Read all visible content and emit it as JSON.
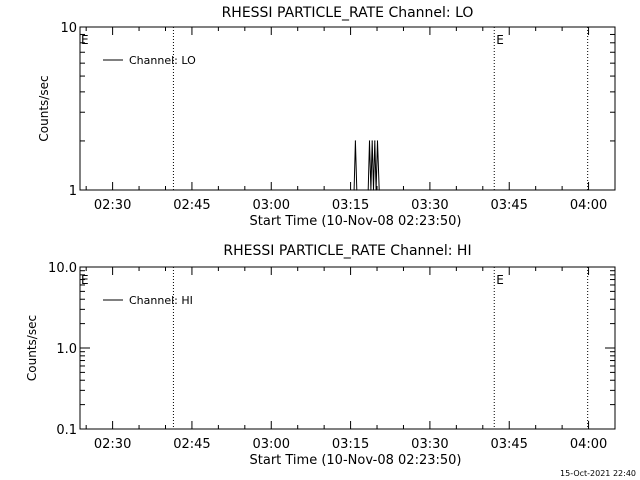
{
  "footer_timestamp": "15-Oct-2021 22:40",
  "chart_data": [
    {
      "type": "line",
      "title": "RHESSI PARTICLE_RATE Channel: LO",
      "xlabel": "Start Time (10-Nov-08 02:23:50)",
      "ylabel": "Counts/sec",
      "y_scale": "log",
      "ylim": [
        1,
        10
      ],
      "y_ticks": [
        {
          "value": 1,
          "label": "1"
        },
        {
          "value": 10,
          "label": "10"
        }
      ],
      "xlim": [
        "02:23:50",
        "04:05:00"
      ],
      "x_ticks": [
        "02:30",
        "02:45",
        "03:00",
        "03:15",
        "03:30",
        "03:45",
        "04:00"
      ],
      "eclipse_markers": [
        {
          "time": "02:41:30",
          "label": ""
        },
        {
          "time": "03:42:10",
          "label": "E"
        },
        {
          "time": "03:59:50",
          "label": ""
        }
      ],
      "left_marker_label": "E",
      "legend": {
        "position": "top-left",
        "entries": [
          "Channel: LO"
        ]
      },
      "series": [
        {
          "name": "Channel: LO",
          "points": [
            [
              "03:15:40",
              1
            ],
            [
              "03:15:55",
              2
            ],
            [
              "03:16:10",
              1
            ],
            [
              "03:18:20",
              1
            ],
            [
              "03:18:35",
              2
            ],
            [
              "03:18:50",
              1
            ],
            [
              "03:19:05",
              2
            ],
            [
              "03:19:20",
              1
            ],
            [
              "03:19:35",
              2
            ],
            [
              "03:19:50",
              1
            ],
            [
              "03:20:05",
              2
            ],
            [
              "03:20:25",
              1
            ]
          ]
        }
      ]
    },
    {
      "type": "line",
      "title": "RHESSI PARTICLE_RATE Channel: HI",
      "xlabel": "Start Time (10-Nov-08 02:23:50)",
      "ylabel": "Counts/sec",
      "y_scale": "log",
      "ylim": [
        0.1,
        10
      ],
      "y_ticks": [
        {
          "value": 0.1,
          "label": "0.1"
        },
        {
          "value": 1,
          "label": "1.0"
        },
        {
          "value": 10,
          "label": "10.0"
        }
      ],
      "xlim": [
        "02:23:50",
        "04:05:00"
      ],
      "x_ticks": [
        "02:30",
        "02:45",
        "03:00",
        "03:15",
        "03:30",
        "03:45",
        "04:00"
      ],
      "eclipse_markers": [
        {
          "time": "02:41:30",
          "label": ""
        },
        {
          "time": "03:42:10",
          "label": "E"
        },
        {
          "time": "03:59:50",
          "label": ""
        }
      ],
      "left_marker_label": "E",
      "legend": {
        "position": "top-left",
        "entries": [
          "Channel: HI"
        ]
      },
      "series": [
        {
          "name": "Channel: HI",
          "points": []
        }
      ]
    }
  ]
}
